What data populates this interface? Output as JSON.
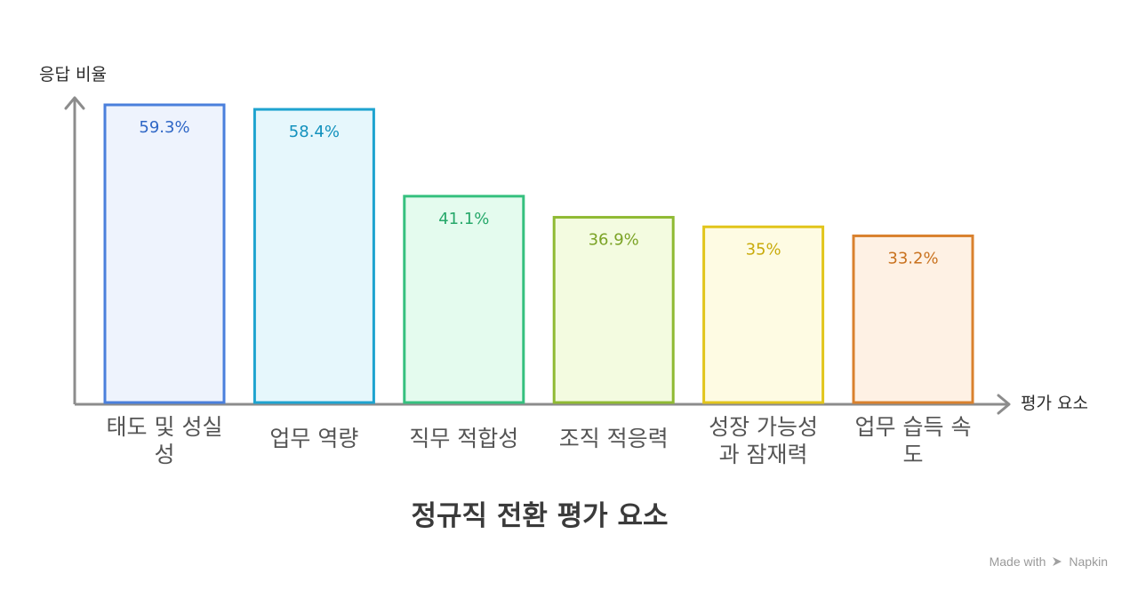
{
  "chart_data": {
    "type": "bar",
    "title": "정규직 전환 평가 요소",
    "xlabel": "평가 요소",
    "ylabel": "응답 비율",
    "ylim": [
      0,
      64
    ],
    "grid": false,
    "categories": [
      [
        "태도 및 성실",
        "성"
      ],
      [
        "업무 역량"
      ],
      [
        "직무 적합성"
      ],
      [
        "조직 적응력"
      ],
      [
        "성장 가능성",
        "과 잠재력"
      ],
      [
        "업무 습득 속",
        "도"
      ]
    ],
    "values": [
      59.3,
      58.4,
      41.1,
      36.9,
      35,
      33.2
    ],
    "value_labels": [
      "59.3%",
      "58.4%",
      "41.1%",
      "36.9%",
      "35%",
      "33.2%"
    ],
    "colors": [
      {
        "stroke": "#4a7fdc",
        "fill": "#eef3fd",
        "text": "#2f67c6"
      },
      {
        "stroke": "#1ea3cf",
        "fill": "#e6f7fc",
        "text": "#1291bd"
      },
      {
        "stroke": "#36c07f",
        "fill": "#e4fbee",
        "text": "#26a86a"
      },
      {
        "stroke": "#8fba33",
        "fill": "#f3fbe0",
        "text": "#7ba326"
      },
      {
        "stroke": "#e2c51c",
        "fill": "#fefbe3",
        "text": "#c9ab0c"
      },
      {
        "stroke": "#d9812e",
        "fill": "#fef1e4",
        "text": "#c9721f"
      }
    ]
  },
  "footer": {
    "made_with": "Made with",
    "brand": "Napkin",
    "brand_icon": "napkin-logo-icon"
  }
}
